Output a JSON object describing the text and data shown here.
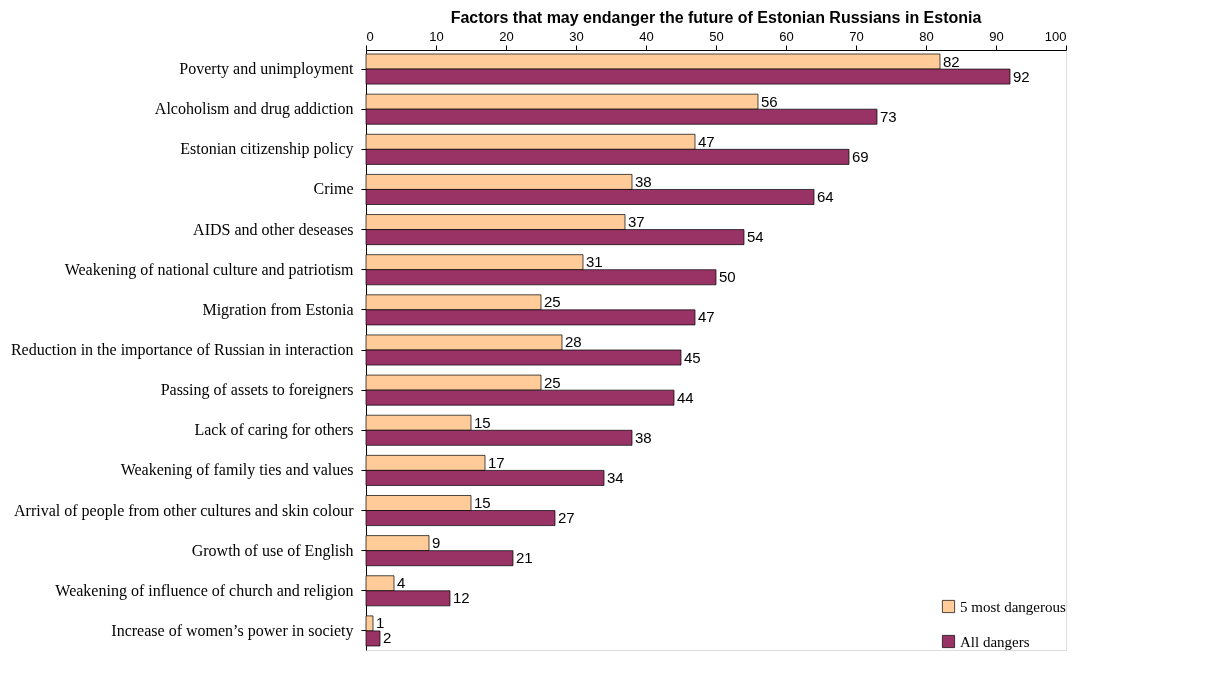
{
  "chart_data": {
    "type": "bar",
    "orientation": "horizontal",
    "title": "Factors that may endanger the future of Estonian Russians in Estonia",
    "categories": [
      "Poverty and unimployment",
      "Alcoholism and drug addiction",
      "Estonian citizenship policy",
      "Crime",
      "AIDS and other deseases",
      "Weakening of national culture and patriotism",
      "Migration from Estonia",
      "Reduction in the importance of Russian in interaction",
      "Passing of assets to foreigners",
      "Lack of caring for others",
      "Weakening of family ties and values",
      "Arrival of people from other cultures and skin colour",
      "Growth of use of English",
      "Weakening of influence of church and religion",
      "Increase of women’s power in society"
    ],
    "series": [
      {
        "name": "5 most dangerous",
        "color": "#ffcc99",
        "values": [
          82,
          56,
          47,
          38,
          37,
          31,
          25,
          28,
          25,
          15,
          17,
          15,
          9,
          4,
          1
        ]
      },
      {
        "name": "All dangers",
        "color": "#993366",
        "values": [
          92,
          73,
          69,
          64,
          54,
          50,
          47,
          45,
          44,
          38,
          34,
          27,
          21,
          12,
          2
        ]
      }
    ],
    "xlim": [
      0,
      100
    ],
    "xticks": [
      0,
      10,
      20,
      30,
      40,
      50,
      60,
      70,
      80,
      90,
      100
    ],
    "data_labels": true,
    "grid": false,
    "legend": "bottom right"
  }
}
